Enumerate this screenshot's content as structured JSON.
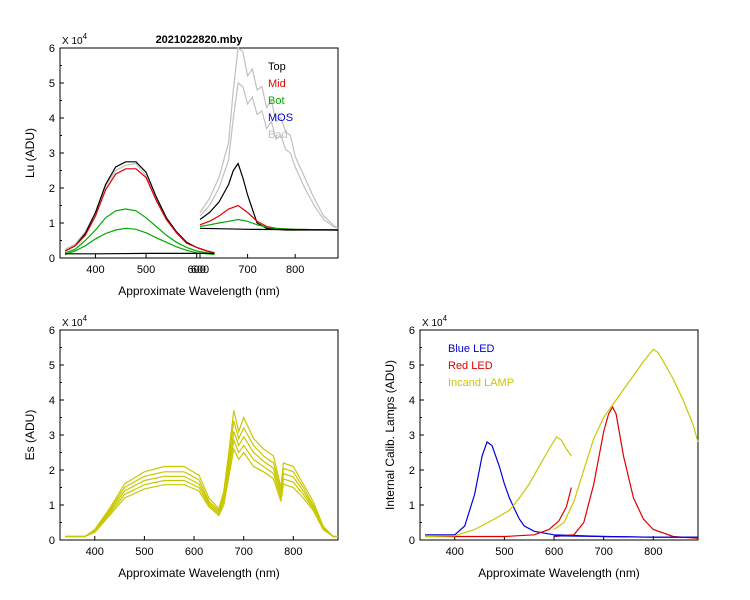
{
  "chart_data": [
    {
      "type": "line",
      "panel": "top-left",
      "title": "2021022820.mby",
      "xlabel": "Approximate Wavelength (nm)",
      "ylabel": "Lu (ADU)",
      "scale_label": "X 10",
      "scale_exp": "4",
      "xlim": [
        330,
        640
      ],
      "ylim": [
        0,
        6
      ],
      "xticks": [
        "400",
        "500",
        "600"
      ],
      "yticks": [
        "0",
        "1",
        "2",
        "3",
        "4",
        "5",
        "6"
      ],
      "legend_position": "top-right",
      "legend": [
        {
          "name": "Top",
          "color": "#000000"
        },
        {
          "name": "Mid",
          "color": "#e00000"
        },
        {
          "name": "Bot",
          "color": "#00aa00"
        },
        {
          "name": "MOS",
          "color": "#0000cc"
        },
        {
          "name": "Bad",
          "color": "#c0c0c0"
        }
      ],
      "series": [
        {
          "name": "Bad",
          "color": "#c0c0c0",
          "x": [
            340,
            360,
            380,
            400,
            420,
            440,
            460,
            480,
            500,
            520,
            540,
            560,
            580,
            600,
            620,
            635
          ],
          "y": [
            0.25,
            0.4,
            0.75,
            1.3,
            2.05,
            2.5,
            2.65,
            2.7,
            2.35,
            1.7,
            1.15,
            0.75,
            0.45,
            0.3,
            0.2,
            0.15
          ]
        },
        {
          "name": "Top",
          "color": "#000000",
          "x": [
            340,
            360,
            380,
            400,
            420,
            440,
            460,
            480,
            500,
            520,
            540,
            560,
            580,
            600,
            620,
            635
          ],
          "y": [
            0.2,
            0.35,
            0.7,
            1.3,
            2.1,
            2.6,
            2.75,
            2.75,
            2.45,
            1.75,
            1.15,
            0.75,
            0.45,
            0.3,
            0.2,
            0.15
          ]
        },
        {
          "name": "Mid",
          "color": "#e00000",
          "x": [
            340,
            360,
            380,
            400,
            420,
            440,
            460,
            480,
            500,
            520,
            540,
            560,
            580,
            600,
            620,
            635
          ],
          "y": [
            0.2,
            0.35,
            0.65,
            1.2,
            1.95,
            2.4,
            2.55,
            2.55,
            2.3,
            1.65,
            1.1,
            0.72,
            0.42,
            0.3,
            0.2,
            0.15
          ]
        },
        {
          "name": "Bot",
          "color": "#00aa00",
          "x": [
            340,
            360,
            380,
            400,
            420,
            440,
            460,
            480,
            500,
            520,
            540,
            560,
            580,
            600,
            620,
            635
          ],
          "y": [
            0.15,
            0.25,
            0.5,
            0.8,
            1.15,
            1.35,
            1.4,
            1.35,
            1.15,
            0.9,
            0.65,
            0.45,
            0.3,
            0.2,
            0.15,
            0.12
          ]
        },
        {
          "name": "Bot",
          "color": "#00aa00",
          "x": [
            340,
            360,
            380,
            400,
            420,
            440,
            460,
            480,
            500,
            520,
            540,
            560,
            580,
            600,
            620,
            635
          ],
          "y": [
            0.1,
            0.2,
            0.35,
            0.55,
            0.7,
            0.8,
            0.85,
            0.82,
            0.72,
            0.58,
            0.45,
            0.32,
            0.22,
            0.15,
            0.12,
            0.1
          ]
        },
        {
          "name": "MOS",
          "color": "#000000",
          "x": [
            340,
            400,
            500,
            600,
            635
          ],
          "y": [
            0.12,
            0.12,
            0.13,
            0.13,
            0.13
          ]
        }
      ]
    },
    {
      "type": "line",
      "panel": "top-left-overlay",
      "xlim": [
        600,
        890
      ],
      "ylim": [
        0,
        6
      ],
      "xticks": [
        "600",
        "700",
        "800"
      ],
      "series": [
        {
          "name": "Bad",
          "color": "#c0c0c0",
          "x": [
            600,
            620,
            640,
            660,
            670,
            680,
            690,
            700,
            710,
            720,
            730,
            740,
            750,
            760,
            770,
            780,
            790,
            800,
            820,
            840,
            860,
            880,
            890
          ],
          "y": [
            1.3,
            1.7,
            2.3,
            3.3,
            4.8,
            6.0,
            5.9,
            5.2,
            5.4,
            4.8,
            4.9,
            4.3,
            4.5,
            3.9,
            4.0,
            3.6,
            3.5,
            2.9,
            2.3,
            1.7,
            1.2,
            0.95,
            0.85
          ]
        },
        {
          "name": "Bad",
          "color": "#c0c0c0",
          "x": [
            600,
            620,
            640,
            660,
            670,
            680,
            690,
            700,
            710,
            720,
            730,
            740,
            750,
            760,
            770,
            780,
            790,
            800,
            820,
            840,
            860,
            880,
            890
          ],
          "y": [
            1.2,
            1.5,
            2.0,
            2.8,
            4.0,
            5.0,
            4.9,
            4.4,
            4.6,
            4.1,
            4.2,
            3.7,
            3.9,
            3.4,
            3.5,
            3.1,
            3.0,
            2.6,
            2.0,
            1.5,
            1.1,
            0.9,
            0.85
          ]
        },
        {
          "name": "Top",
          "color": "#000000",
          "x": [
            600,
            620,
            640,
            660,
            670,
            680,
            690,
            700,
            710,
            720,
            740,
            760,
            780,
            800,
            840,
            890
          ],
          "y": [
            1.1,
            1.3,
            1.6,
            2.1,
            2.5,
            2.7,
            2.3,
            1.8,
            1.4,
            1.0,
            0.85,
            0.82,
            0.8,
            0.8,
            0.8,
            0.8
          ]
        },
        {
          "name": "Mid",
          "color": "#e00000",
          "x": [
            600,
            620,
            640,
            660,
            680,
            700,
            720,
            740,
            760,
            800,
            890
          ],
          "y": [
            0.95,
            1.05,
            1.2,
            1.4,
            1.5,
            1.3,
            1.05,
            0.9,
            0.85,
            0.82,
            0.8
          ]
        },
        {
          "name": "Bot",
          "color": "#00aa00",
          "x": [
            600,
            620,
            640,
            660,
            680,
            700,
            720,
            740,
            760,
            800,
            890
          ],
          "y": [
            0.9,
            0.95,
            1.0,
            1.05,
            1.1,
            1.05,
            0.95,
            0.88,
            0.84,
            0.82,
            0.8
          ]
        },
        {
          "name": "MOS",
          "color": "#000000",
          "x": [
            600,
            700,
            890
          ],
          "y": [
            0.85,
            0.82,
            0.8
          ]
        }
      ]
    },
    {
      "type": "line",
      "panel": "bottom-left",
      "xlabel": "Approximate Wavelength (nm)",
      "ylabel": "Es  (ADU)",
      "scale_label": "X 10",
      "scale_exp": "4",
      "xlim": [
        330,
        890
      ],
      "ylim": [
        0,
        6
      ],
      "xticks": [
        "400",
        "500",
        "600",
        "700",
        "800"
      ],
      "yticks": [
        "0",
        "1",
        "2",
        "3",
        "4",
        "5",
        "6"
      ],
      "series": [
        {
          "name": "Es",
          "color": "#c8c800",
          "x": [
            340,
            380,
            400,
            430,
            460,
            500,
            540,
            580,
            610,
            630,
            650,
            660,
            670,
            680,
            690,
            700,
            720,
            740,
            760,
            775,
            780,
            800,
            820,
            840,
            860,
            880,
            890
          ],
          "y": [
            0.1,
            0.1,
            0.3,
            0.9,
            1.6,
            1.95,
            2.1,
            2.1,
            1.85,
            1.2,
            0.9,
            1.4,
            2.5,
            3.7,
            3.1,
            3.5,
            2.9,
            2.6,
            2.4,
            1.5,
            2.2,
            2.1,
            1.6,
            1.1,
            0.4,
            0.1,
            0.1
          ]
        },
        {
          "name": "Es",
          "color": "#c8c800",
          "x": [
            340,
            380,
            400,
            430,
            460,
            500,
            540,
            580,
            610,
            630,
            650,
            660,
            670,
            680,
            690,
            700,
            720,
            740,
            760,
            775,
            780,
            800,
            820,
            840,
            860,
            880,
            890
          ],
          "y": [
            0.1,
            0.1,
            0.28,
            0.85,
            1.5,
            1.82,
            1.95,
            1.95,
            1.72,
            1.1,
            0.85,
            1.3,
            2.3,
            3.4,
            2.9,
            3.2,
            2.7,
            2.4,
            2.2,
            1.4,
            2.05,
            1.95,
            1.5,
            1.0,
            0.38,
            0.1,
            0.1
          ]
        },
        {
          "name": "Es",
          "color": "#c8c800",
          "x": [
            340,
            380,
            400,
            430,
            460,
            500,
            540,
            580,
            610,
            630,
            650,
            660,
            670,
            680,
            690,
            700,
            720,
            740,
            760,
            775,
            780,
            800,
            820,
            840,
            860,
            880,
            890
          ],
          "y": [
            0.1,
            0.1,
            0.26,
            0.8,
            1.4,
            1.7,
            1.82,
            1.82,
            1.6,
            1.05,
            0.8,
            1.2,
            2.1,
            3.1,
            2.7,
            2.95,
            2.5,
            2.25,
            2.05,
            1.3,
            1.9,
            1.8,
            1.4,
            0.95,
            0.35,
            0.1,
            0.1
          ]
        },
        {
          "name": "Es",
          "color": "#c8c800",
          "x": [
            340,
            380,
            400,
            430,
            460,
            500,
            540,
            580,
            610,
            630,
            650,
            660,
            670,
            680,
            690,
            700,
            720,
            740,
            760,
            775,
            780,
            800,
            820,
            840,
            860,
            880,
            890
          ],
          "y": [
            0.1,
            0.1,
            0.24,
            0.75,
            1.3,
            1.58,
            1.7,
            1.7,
            1.5,
            1.0,
            0.75,
            1.1,
            1.95,
            2.85,
            2.5,
            2.7,
            2.3,
            2.1,
            1.9,
            1.2,
            1.75,
            1.65,
            1.3,
            0.9,
            0.32,
            0.1,
            0.1
          ]
        },
        {
          "name": "Es",
          "color": "#c8c800",
          "x": [
            340,
            380,
            400,
            430,
            460,
            500,
            540,
            580,
            610,
            630,
            650,
            660,
            670,
            680,
            690,
            700,
            720,
            740,
            760,
            775,
            780,
            800,
            820,
            840,
            860,
            880,
            890
          ],
          "y": [
            0.1,
            0.1,
            0.22,
            0.7,
            1.2,
            1.46,
            1.58,
            1.58,
            1.4,
            0.95,
            0.7,
            1.0,
            1.8,
            2.6,
            2.3,
            2.5,
            2.1,
            1.95,
            1.75,
            1.1,
            1.6,
            1.5,
            1.2,
            0.85,
            0.3,
            0.1,
            0.1
          ]
        }
      ]
    },
    {
      "type": "line",
      "panel": "bottom-right",
      "xlabel": "Approximate Wavelength (nm)",
      "ylabel": "Internal Calib. Lamps  (ADU)",
      "scale_label": "X 10",
      "scale_exp": "4",
      "xlim": [
        330,
        890
      ],
      "ylim": [
        0,
        6
      ],
      "xticks": [
        "400",
        "500",
        "600",
        "700",
        "800"
      ],
      "yticks": [
        "0",
        "1",
        "2",
        "3",
        "4",
        "5",
        "6"
      ],
      "legend_position": "top-left",
      "legend": [
        {
          "name": "Blue LED",
          "color": "#0000dd"
        },
        {
          "name": "Red LED",
          "color": "#dd0000"
        },
        {
          "name": "Incand LAMP",
          "color": "#c8c800"
        }
      ],
      "series": [
        {
          "name": "Blue LED",
          "color": "#0000dd",
          "x": [
            340,
            400,
            420,
            440,
            455,
            465,
            475,
            490,
            500,
            510,
            520,
            530,
            540,
            560,
            600,
            700,
            800,
            890
          ],
          "y": [
            0.15,
            0.15,
            0.4,
            1.3,
            2.4,
            2.8,
            2.7,
            2.1,
            1.6,
            1.2,
            0.9,
            0.6,
            0.4,
            0.25,
            0.15,
            0.1,
            0.08,
            0.08
          ]
        },
        {
          "name": "Red LED",
          "color": "#dd0000",
          "x": [
            340,
            500,
            560,
            590,
            610,
            625,
            635
          ],
          "y": [
            0.1,
            0.1,
            0.15,
            0.3,
            0.55,
            0.95,
            1.5
          ]
        },
        {
          "name": "Red LED",
          "color": "#dd0000",
          "x": [
            600,
            640,
            660,
            680,
            700,
            710,
            718,
            725,
            740,
            760,
            780,
            800,
            840,
            890
          ],
          "y": [
            0.1,
            0.15,
            0.5,
            1.6,
            3.1,
            3.6,
            3.8,
            3.6,
            2.4,
            1.2,
            0.6,
            0.3,
            0.1,
            0.05
          ]
        },
        {
          "name": "Incand LAMP",
          "color": "#c8c800",
          "x": [
            340,
            400,
            440,
            480,
            510,
            530,
            550,
            570,
            590,
            605,
            615,
            625,
            635
          ],
          "y": [
            0.1,
            0.12,
            0.3,
            0.6,
            0.85,
            1.2,
            1.6,
            2.1,
            2.6,
            2.95,
            2.85,
            2.6,
            2.4
          ]
        },
        {
          "name": "Incand LAMP",
          "color": "#c8c800",
          "x": [
            600,
            620,
            640,
            660,
            680,
            700,
            720,
            740,
            760,
            780,
            800,
            810,
            820,
            840,
            860,
            880,
            890
          ],
          "y": [
            0.3,
            0.5,
            1.1,
            2.0,
            2.9,
            3.5,
            3.9,
            4.3,
            4.7,
            5.1,
            5.45,
            5.35,
            5.1,
            4.6,
            4.0,
            3.3,
            2.8
          ]
        },
        {
          "name": "Blue LED",
          "color": "#0000dd",
          "x": [
            600,
            700,
            800,
            890
          ],
          "y": [
            0.12,
            0.1,
            0.08,
            0.08
          ]
        }
      ]
    }
  ]
}
